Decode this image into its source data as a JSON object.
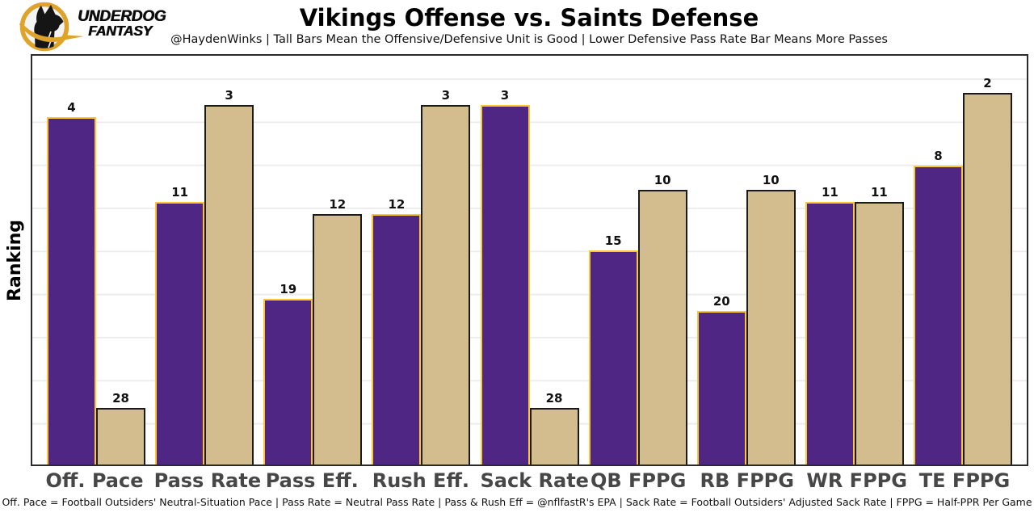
{
  "header": {
    "brand": {
      "line1": "UNDERDOG",
      "line2": "FANTASY"
    }
  },
  "chart_data": {
    "type": "bar",
    "title": "Vikings Offense vs. Saints Defense",
    "subtitle": "@HaydenWinks | Tall Bars Mean the Offensive/Defensive Unit is Good | Lower Defensive Pass Rate Bar Means More Passes",
    "ylabel": "Ranking",
    "y_tick_labels_visible": false,
    "grid": true,
    "legend_position": "none",
    "bar_value_labels": true,
    "value_semantics": "NFL ranking (1 = best); bars drawn as 33 minus rank so taller bar = better unit",
    "categories": [
      "Off. Pace",
      "Pass Rate",
      "Pass Eff.",
      "Rush Eff.",
      "Sack Rate",
      "QB FPPG",
      "RB FPPG",
      "WR FPPG",
      "TE FPPG"
    ],
    "series": [
      {
        "name": "Vikings Offense",
        "fill": "#4F2683",
        "edge": "#FFC62F",
        "values": [
          4,
          11,
          19,
          12,
          3,
          15,
          20,
          11,
          8
        ]
      },
      {
        "name": "Saints Defense",
        "fill": "#D3BC8D",
        "edge": "#1A1A1A",
        "values": [
          28,
          3,
          12,
          3,
          28,
          10,
          10,
          11,
          2
        ]
      }
    ],
    "footnote": "Off. Pace = Football Outsiders' Neutral-Situation Pace | Pass Rate = Neutral Pass Rate | Pass & Rush Eff = @nflfastR's EPA | Sack Rate = Football Outsiders' Adjusted Sack Rate | FPPG = Half-PPR Per Game"
  },
  "colors": {
    "grid": "#EDEDED",
    "plot_border": "#2B2B2B",
    "tick_label": "#474747",
    "logo_gold": "#DFA32B",
    "background": "#FFFFFF"
  }
}
